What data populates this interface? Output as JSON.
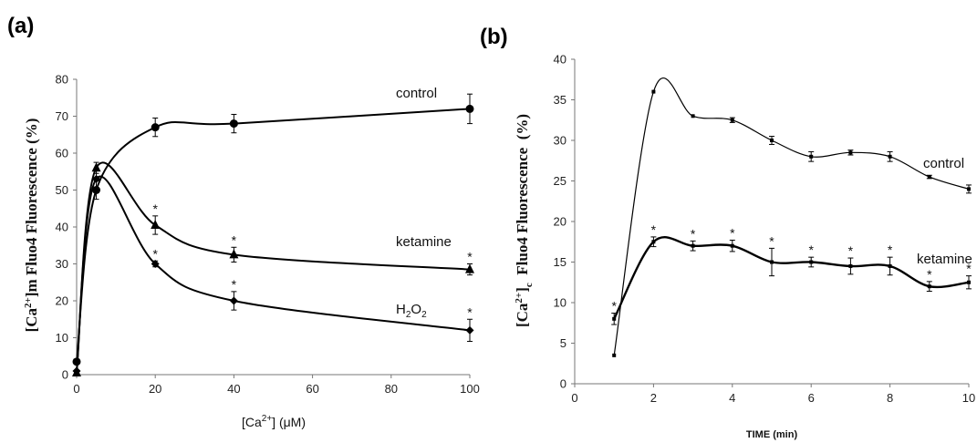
{
  "chart_data": [
    {
      "panel_label": "(a)",
      "type": "line",
      "xlabel": {
        "pre": "[Ca",
        "sup": "2+",
        "post": "] (μM)"
      },
      "ylabel": {
        "pre": "[Ca",
        "sup": "2+",
        "post": "]m Fluo4 Fluorescence (%)"
      },
      "xlim": [
        0,
        100
      ],
      "ylim": [
        0,
        80
      ],
      "xticks": [
        0,
        20,
        40,
        60,
        80,
        100
      ],
      "yticks": [
        0,
        10,
        20,
        30,
        40,
        50,
        60,
        70,
        80
      ],
      "series": [
        {
          "label": "control",
          "marker": "circle",
          "x": [
            0,
            5,
            20,
            40,
            100
          ],
          "y": [
            3.5,
            50,
            67,
            68,
            72
          ],
          "err": [
            0,
            2.5,
            2.5,
            2.5,
            4
          ],
          "stars": [
            false,
            false,
            false,
            false,
            false
          ]
        },
        {
          "label": "ketamine",
          "marker": "triangle",
          "x": [
            0,
            5,
            20,
            40,
            100
          ],
          "y": [
            0.5,
            56,
            40.5,
            32.5,
            28.5
          ],
          "err": [
            0,
            1.5,
            2.5,
            2,
            1.5
          ],
          "stars": [
            false,
            false,
            true,
            true,
            true
          ]
        },
        {
          "label": "H2O2",
          "label_parts": {
            "a": "H",
            "sub1": "2",
            "b": "O",
            "sub2": "2"
          },
          "marker": "diamond",
          "x": [
            0,
            5,
            20,
            40,
            100
          ],
          "y": [
            1,
            53,
            30,
            20,
            12
          ],
          "err": [
            0,
            2.5,
            0.8,
            2.5,
            3
          ],
          "stars": [
            false,
            false,
            true,
            true,
            true
          ]
        }
      ]
    },
    {
      "panel_label": "(b)",
      "type": "line",
      "xlabel": "TIME (min)",
      "ylabel": {
        "pre": "[Ca",
        "sup": "2+",
        "post": "]",
        "sub": "c",
        "post2": "  Fluo4 Fluorescence  (%)"
      },
      "xlim": [
        0,
        10
      ],
      "ylim": [
        0,
        40
      ],
      "xticks": [
        0,
        2,
        4,
        6,
        8,
        10
      ],
      "yticks": [
        0,
        5,
        10,
        15,
        20,
        25,
        30,
        35,
        40
      ],
      "series": [
        {
          "label": "control",
          "marker": "square",
          "x": [
            1,
            2,
            3,
            4,
            5,
            6,
            7,
            8,
            9,
            10
          ],
          "y": [
            3.5,
            36,
            33,
            32.5,
            30,
            28,
            28.5,
            28,
            25.5,
            24
          ],
          "err": [
            0,
            0,
            0,
            0.3,
            0.5,
            0.6,
            0.3,
            0.6,
            0.2,
            0.5
          ],
          "stars": [
            false,
            false,
            false,
            false,
            false,
            false,
            false,
            false,
            false,
            false
          ]
        },
        {
          "label": "ketamine",
          "marker": "square",
          "x": [
            1,
            2,
            3,
            4,
            5,
            6,
            7,
            8,
            9,
            10
          ],
          "y": [
            8,
            17.5,
            17,
            17,
            15,
            15,
            14.5,
            14.5,
            12,
            12.5
          ],
          "err": [
            0.7,
            0.6,
            0.6,
            0.7,
            1.7,
            0.6,
            1,
            1.1,
            0.6,
            0.8
          ],
          "stars": [
            true,
            true,
            true,
            true,
            true,
            true,
            true,
            true,
            true,
            true
          ]
        }
      ]
    }
  ]
}
